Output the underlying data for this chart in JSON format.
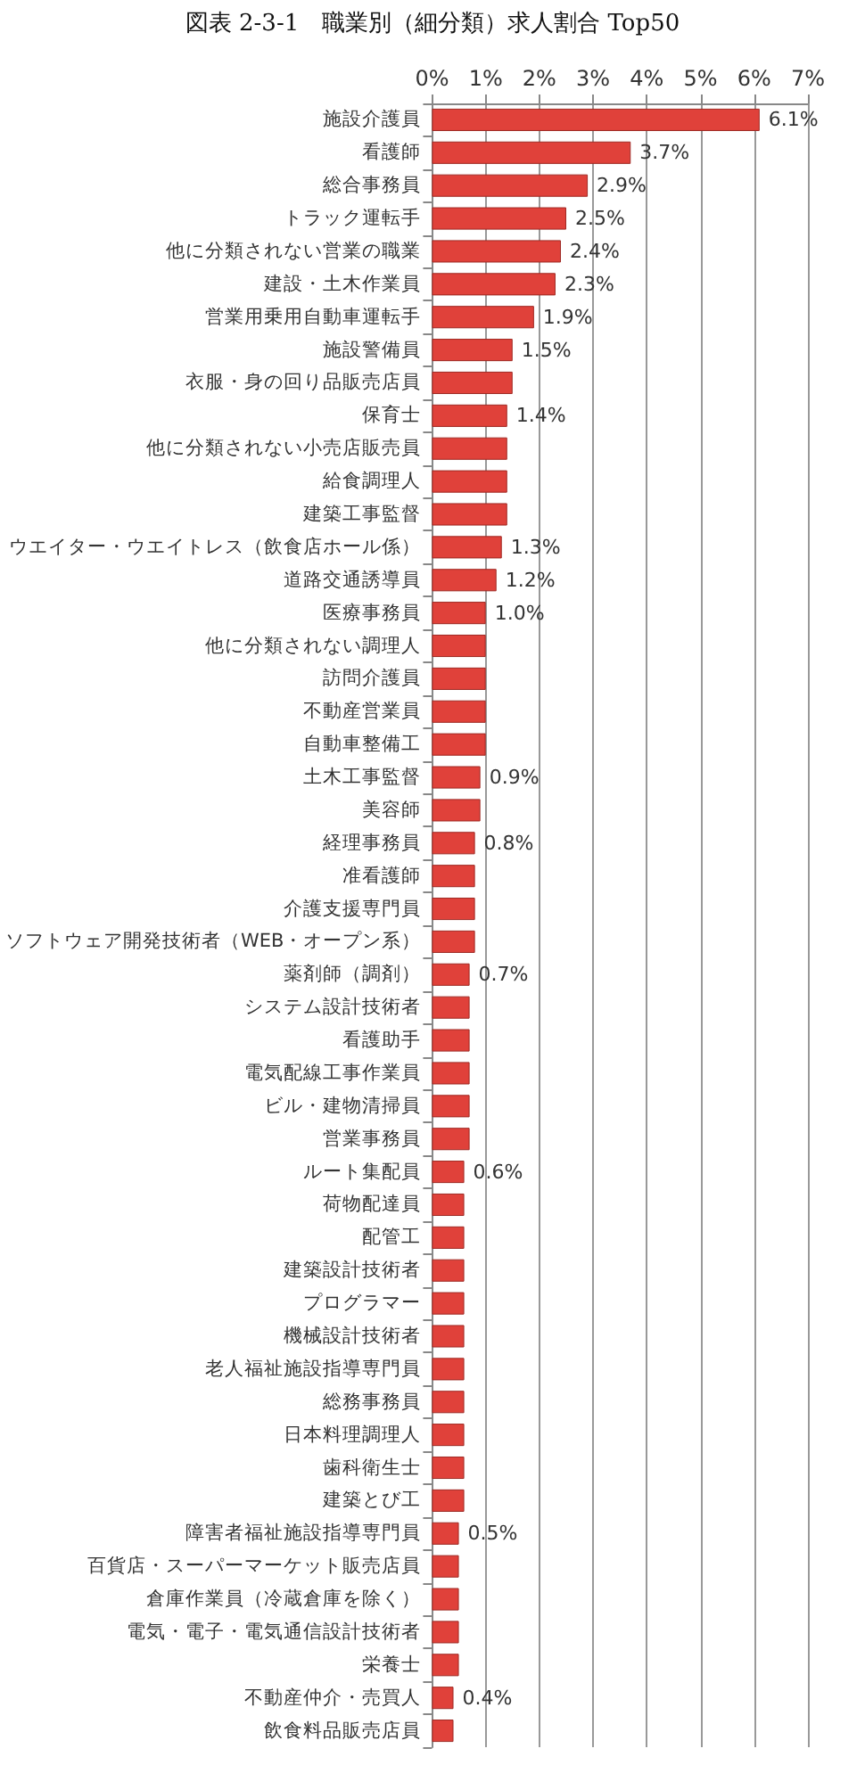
{
  "chart_data": {
    "type": "bar",
    "orientation": "horizontal",
    "title": "図表 2-3-1　職業別（細分類）求人割合 Top50",
    "categories": [
      "施設介護員",
      "看護師",
      "総合事務員",
      "トラック運転手",
      "他に分類されない営業の職業",
      "建設・土木作業員",
      "営業用乗用自動車運転手",
      "施設警備員",
      "衣服・身の回り品販売店員",
      "保育士",
      "他に分類されない小売店販売員",
      "給食調理人",
      "建築工事監督",
      "ウエイター・ウエイトレス（飲食店ホール係）",
      "道路交通誘導員",
      "医療事務員",
      "他に分類されない調理人",
      "訪問介護員",
      "不動産営業員",
      "自動車整備工",
      "土木工事監督",
      "美容師",
      "経理事務員",
      "准看護師",
      "介護支援専門員",
      "ソフトウェア開発技術者（WEB・オープン系）",
      "薬剤師（調剤）",
      "システム設計技術者",
      "看護助手",
      "電気配線工事作業員",
      "ビル・建物清掃員",
      "営業事務員",
      "ルート集配員",
      "荷物配達員",
      "配管工",
      "建築設計技術者",
      "プログラマー",
      "機械設計技術者",
      "老人福祉施設指導専門員",
      "総務事務員",
      "日本料理調理人",
      "歯科衛生士",
      "建築とび工",
      "障害者福祉施設指導専門員",
      "百貨店・スーパーマーケット販売店員",
      "倉庫作業員（冷蔵倉庫を除く）",
      "電気・電子・電気通信設計技術者",
      "栄養士",
      "不動産仲介・売買人",
      "飲食料品販売店員"
    ],
    "values": [
      6.1,
      3.7,
      2.9,
      2.5,
      2.4,
      2.3,
      1.9,
      1.5,
      1.5,
      1.4,
      1.4,
      1.4,
      1.4,
      1.3,
      1.2,
      1.0,
      1.0,
      1.0,
      1.0,
      1.0,
      0.9,
      0.9,
      0.8,
      0.8,
      0.8,
      0.8,
      0.7,
      0.7,
      0.7,
      0.7,
      0.7,
      0.7,
      0.6,
      0.6,
      0.6,
      0.6,
      0.6,
      0.6,
      0.6,
      0.6,
      0.6,
      0.6,
      0.6,
      0.5,
      0.5,
      0.5,
      0.5,
      0.5,
      0.4,
      0.4
    ],
    "value_labels": [
      "6.1%",
      "3.7%",
      "2.9%",
      "2.5%",
      "2.4%",
      "2.3%",
      "1.9%",
      "1.5%",
      null,
      "1.4%",
      null,
      null,
      null,
      "1.3%",
      "1.2%",
      "1.0%",
      null,
      null,
      null,
      null,
      "0.9%",
      null,
      "0.8%",
      null,
      null,
      null,
      "0.7%",
      null,
      null,
      null,
      null,
      null,
      "0.6%",
      null,
      null,
      null,
      null,
      null,
      null,
      null,
      null,
      null,
      null,
      "0.5%",
      null,
      null,
      null,
      null,
      "0.4%",
      null
    ],
    "color": "#e0413a",
    "xlim": [
      0,
      7
    ],
    "xticks": [
      {
        "value": 0,
        "label": "0%"
      },
      {
        "value": 1,
        "label": "1%"
      },
      {
        "value": 2,
        "label": "2%"
      },
      {
        "value": 3,
        "label": "3%"
      },
      {
        "value": 4,
        "label": "4%"
      },
      {
        "value": 5,
        "label": "5%"
      },
      {
        "value": 6,
        "label": "6%"
      },
      {
        "value": 7,
        "label": "7%"
      }
    ],
    "grid": "x"
  }
}
